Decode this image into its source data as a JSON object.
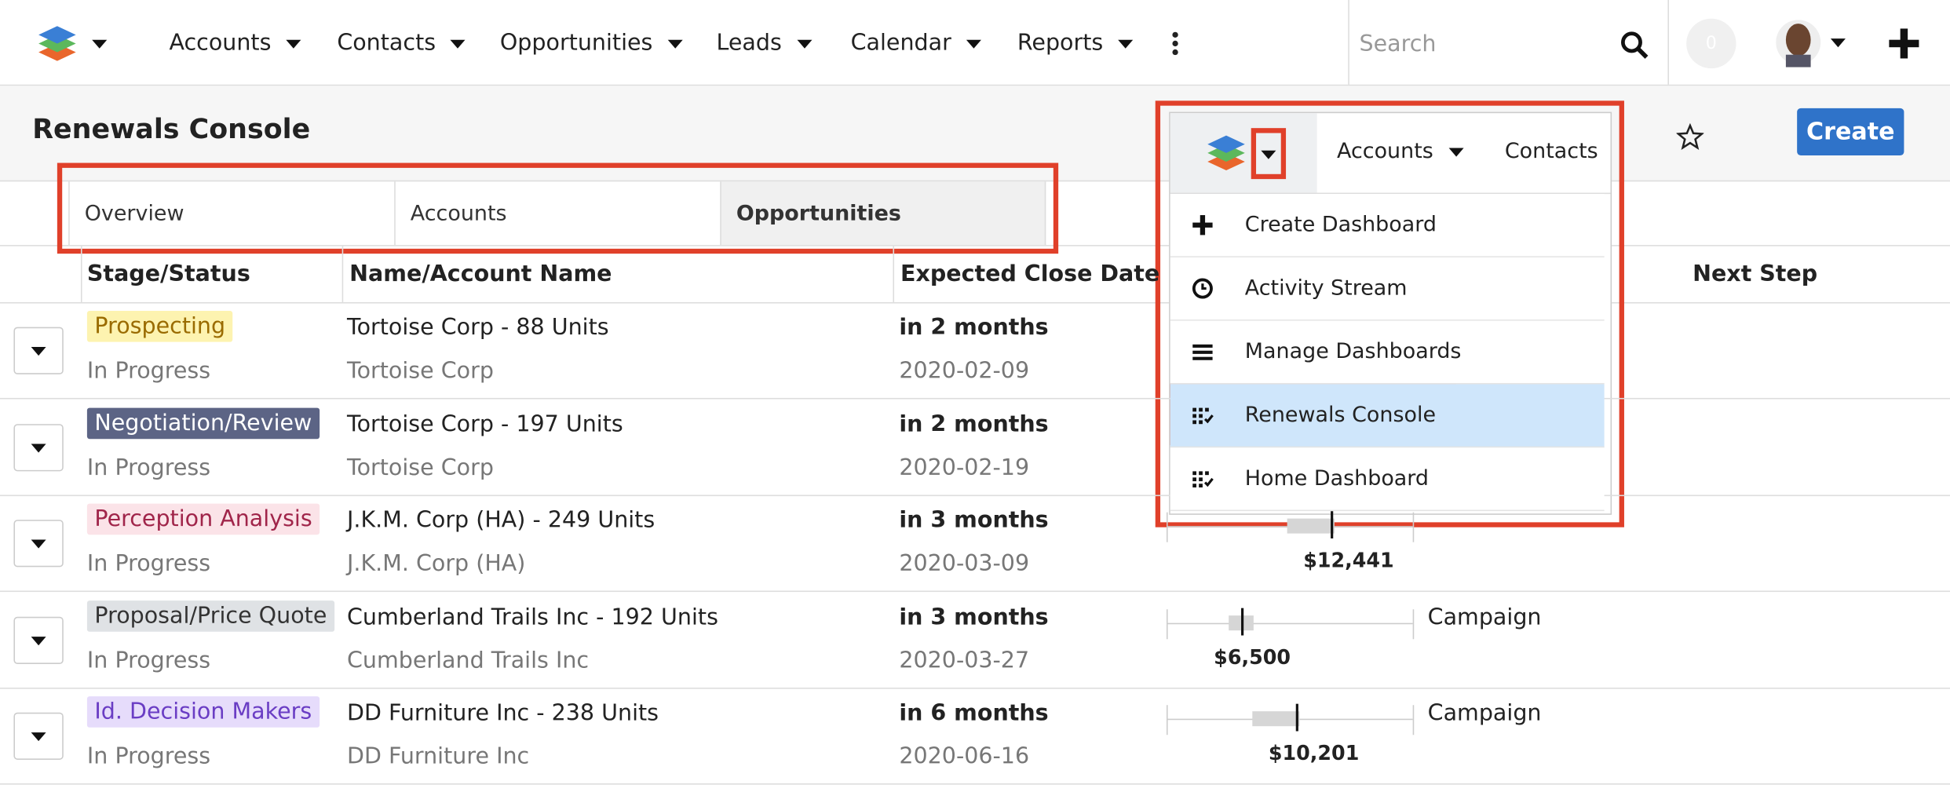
{
  "nav": {
    "items": [
      "Accounts",
      "Contacts",
      "Opportunities",
      "Leads",
      "Calendar",
      "Reports"
    ],
    "search_placeholder": "Search",
    "notification_count": 0
  },
  "page": {
    "title": "Renewals Console",
    "create_button": "Create"
  },
  "tabs": [
    "Overview",
    "Accounts",
    "Opportunities"
  ],
  "table": {
    "headers": [
      "Stage/Status",
      "Name/Account Name",
      "Expected Close Date",
      "Next Step"
    ],
    "rows": [
      {
        "stage": "Prospecting",
        "status": "In Progress",
        "name": "Tortoise Corp - 88 Units",
        "account": "Tortoise Corp",
        "close_relative": "in 2 months",
        "close_date": "2020-02-09"
      },
      {
        "stage": "Negotiation/Review",
        "status": "In Progress",
        "name": "Tortoise Corp - 197 Units",
        "account": "Tortoise Corp",
        "close_relative": "in 2 months",
        "close_date": "2020-02-19"
      },
      {
        "stage": "Perception Analysis",
        "status": "In Progress",
        "name": "J.K.M. Corp (HA) - 249 Units",
        "account": "J.K.M. Corp (HA)",
        "close_relative": "in 3 months",
        "close_date": "2020-03-09",
        "amount": "$12,441"
      },
      {
        "stage": "Proposal/Price Quote",
        "status": "In Progress",
        "name": "Cumberland Trails Inc - 192 Units",
        "account": "Cumberland Trails Inc",
        "close_relative": "in 3 months",
        "close_date": "2020-03-27",
        "amount": "$6,500",
        "next_step": "Campaign"
      },
      {
        "stage": "Id. Decision Makers",
        "status": "In Progress",
        "name": "DD Furniture Inc - 238 Units",
        "account": "DD Furniture Inc",
        "close_relative": "in 6 months",
        "close_date": "2020-06-16",
        "amount": "$10,201",
        "next_step": "Campaign"
      }
    ]
  },
  "dropdown": {
    "tabs": [
      "Accounts",
      "Contacts"
    ],
    "items": [
      "Create Dashboard",
      "Activity Stream",
      "Manage Dashboards",
      "Renewals Console",
      "Home Dashboard"
    ]
  }
}
